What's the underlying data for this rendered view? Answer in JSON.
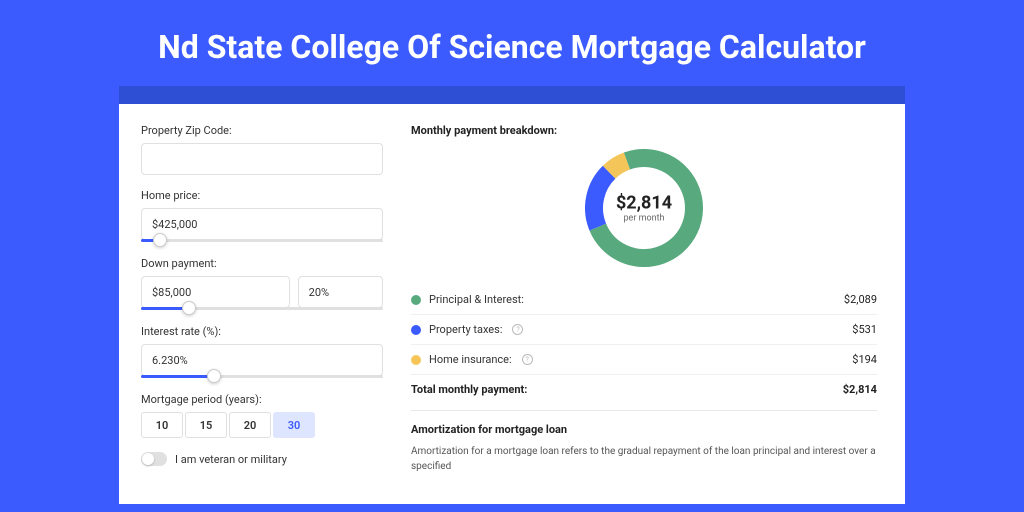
{
  "page": {
    "title": "Nd State College Of Science Mortgage Calculator"
  },
  "form": {
    "zip": {
      "label": "Property Zip Code:",
      "value": ""
    },
    "home_price": {
      "label": "Home price:",
      "value": "$425,000",
      "slider_pct": 8
    },
    "down_payment": {
      "label": "Down payment:",
      "amount": "$85,000",
      "percent": "20%",
      "slider_pct": 20
    },
    "interest_rate": {
      "label": "Interest rate (%):",
      "value": "6.230%",
      "slider_pct": 30
    },
    "period": {
      "label": "Mortgage period (years):",
      "options": [
        "10",
        "15",
        "20",
        "30"
      ],
      "selected": "30"
    },
    "veteran": {
      "label": "I am veteran or military",
      "checked": false
    }
  },
  "chart": {
    "title": "Monthly payment breakdown:",
    "type": "donut",
    "center_amount": "$2,814",
    "center_sub": "per month",
    "size": 118,
    "stroke_width": 18,
    "segments": [
      {
        "label": "Principal & Interest:",
        "value": "$2,089",
        "color": "#58A97E",
        "pct": 74.2,
        "info": false
      },
      {
        "label": "Property taxes:",
        "value": "$531",
        "color": "#3B5BFF",
        "pct": 18.9,
        "info": true
      },
      {
        "label": "Home insurance:",
        "value": "$194",
        "color": "#F4C659",
        "pct": 6.9,
        "info": true
      }
    ],
    "total_label": "Total monthly payment:",
    "total_value": "$2,814"
  },
  "amortization": {
    "title": "Amortization for mortgage loan",
    "text": "Amortization for a mortgage loan refers to the gradual repayment of the loan principal and interest over a specified"
  },
  "colors": {
    "bg": "#3B5BFF",
    "topbar": "#2E4FD4",
    "card": "#ffffff"
  }
}
